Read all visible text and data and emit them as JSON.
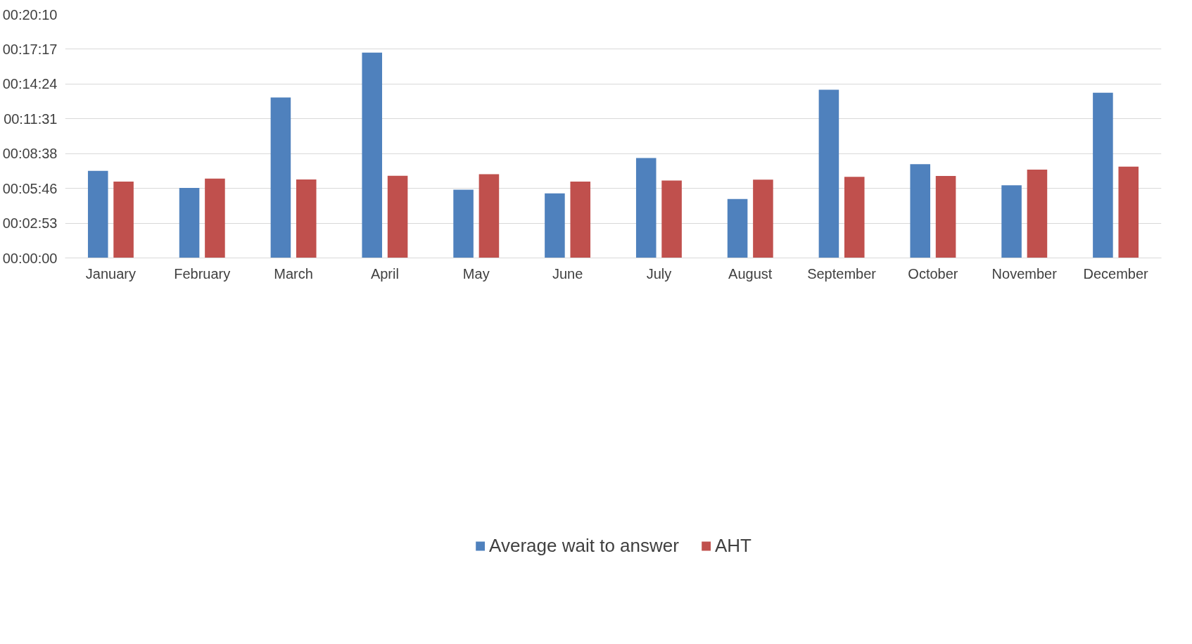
{
  "chart_data": {
    "type": "bar",
    "categories": [
      "January",
      "February",
      "March",
      "April",
      "May",
      "June",
      "July",
      "August",
      "September",
      "October",
      "November",
      "December"
    ],
    "series": [
      {
        "name": "Average wait to answer",
        "color": "#4f81bd",
        "values": [
          433,
          348,
          797,
          1020,
          339,
          321,
          497,
          293,
          836,
          466,
          361,
          821
        ]
      },
      {
        "name": "AHT",
        "color": "#c0504d",
        "values": [
          379,
          394,
          390,
          408,
          416,
          379,
          385,
          389,
          403,
          407,
          439,
          454
        ]
      }
    ],
    "ylim": [
      0,
      1210
    ],
    "yticks": [
      {
        "value": 0,
        "label": "00:00:00"
      },
      {
        "value": 173,
        "label": "00:02:53"
      },
      {
        "value": 346,
        "label": "00:05:46"
      },
      {
        "value": 518,
        "label": "00:08:38"
      },
      {
        "value": 691,
        "label": "00:11:31"
      },
      {
        "value": 864,
        "label": "00:14:24"
      },
      {
        "value": 1037,
        "label": "00:17:17"
      },
      {
        "value": 1210,
        "label": "00:20:10"
      }
    ],
    "grid": "y",
    "legend": "bottom"
  }
}
